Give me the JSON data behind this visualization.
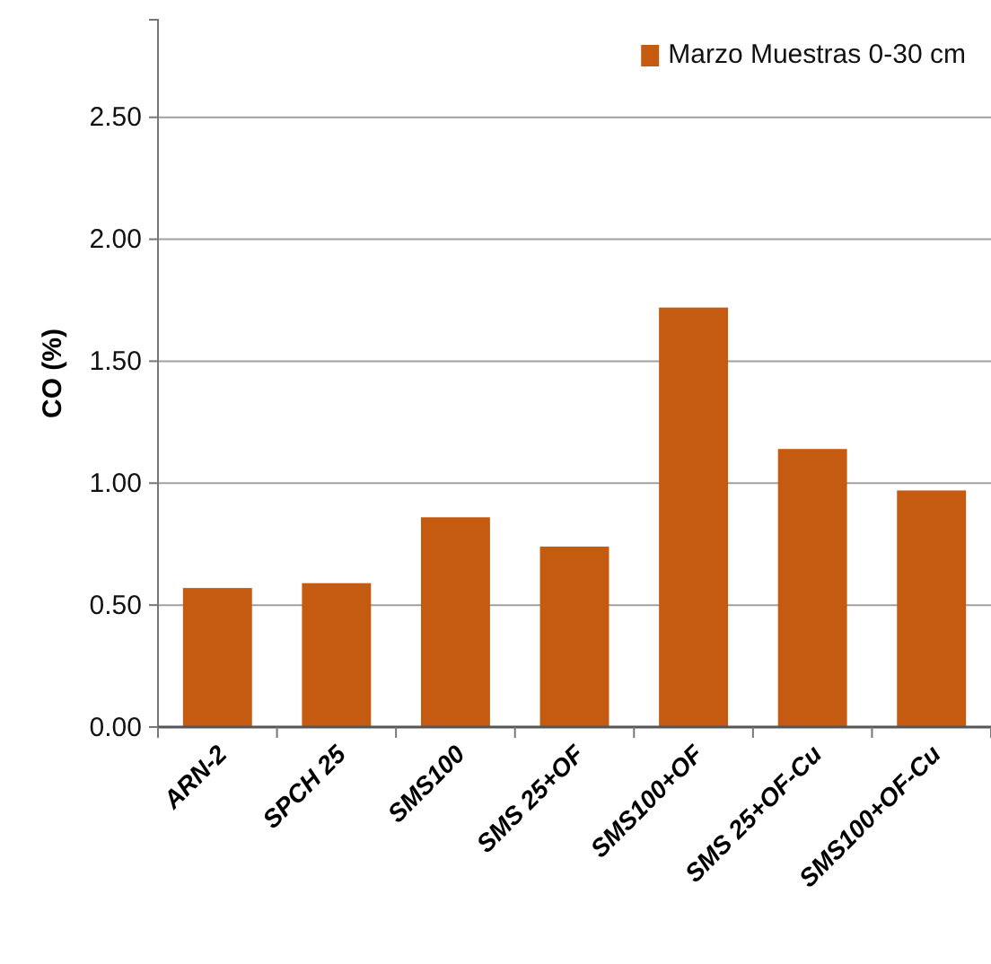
{
  "chart_data": {
    "type": "bar",
    "ylabel": "CO (%)",
    "categories": [
      "ARN-2",
      "SPCH 25",
      "SMS100",
      "SMS 25+OF",
      "SMS100+OF",
      "SMS 25+OF-Cu",
      "SMS100+OF-Cu"
    ],
    "series": [
      {
        "name": "Marzo Muestras 0-30 cm",
        "color": "#c55a11",
        "values": [
          0.57,
          0.59,
          0.86,
          0.74,
          1.72,
          1.14,
          0.97
        ]
      }
    ],
    "ylim": [
      0,
      2.9
    ],
    "yticks": [
      {
        "value": 0,
        "label": "0.00"
      },
      {
        "value": 0.5,
        "label": "0.50"
      },
      {
        "value": 1,
        "label": "1.00"
      },
      {
        "value": 1.5,
        "label": "1.50"
      },
      {
        "value": 2,
        "label": "2.00"
      },
      {
        "value": 2.5,
        "label": "2.50"
      }
    ],
    "grid": "y",
    "legend": "top right"
  }
}
